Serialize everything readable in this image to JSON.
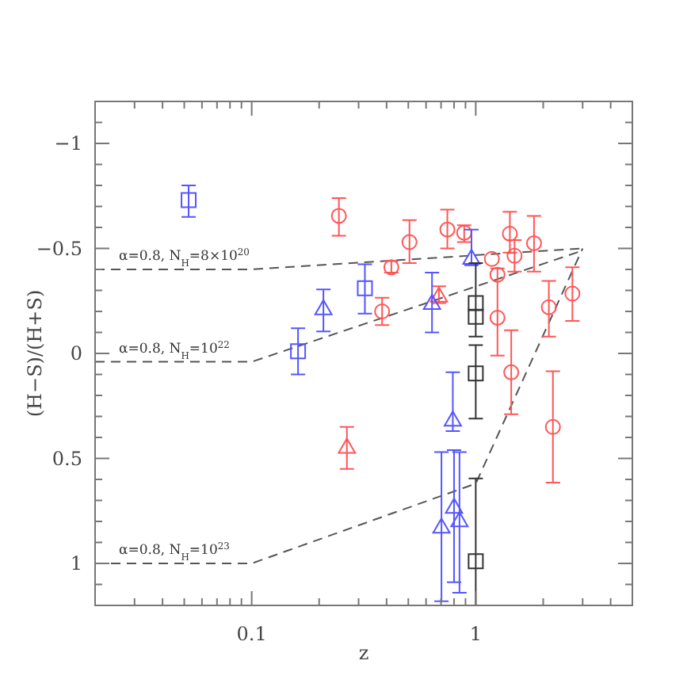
{
  "chart_data": {
    "type": "scatter",
    "xlabel": "z",
    "ylabel": "(H−S)/(H+S)",
    "log": "x",
    "xlim": [
      0.02,
      5
    ],
    "ylim": [
      1.2,
      -1.2
    ],
    "xticks": [
      {
        "value": 0.03,
        "label": null
      },
      {
        "value": 0.04,
        "label": null
      },
      {
        "value": 0.05,
        "label": null
      },
      {
        "value": 0.06,
        "label": null
      },
      {
        "value": 0.07,
        "label": null
      },
      {
        "value": 0.08,
        "label": null
      },
      {
        "value": 0.09,
        "label": null
      },
      0.1,
      {
        "value": 0.2,
        "label": null
      },
      {
        "value": 0.3,
        "label": null
      },
      {
        "value": 0.4,
        "label": null
      },
      {
        "value": 0.5,
        "label": null
      },
      {
        "value": 0.6,
        "label": null
      },
      {
        "value": 0.7,
        "label": null
      },
      {
        "value": 0.8,
        "label": null
      },
      {
        "value": 0.9,
        "label": null
      },
      1,
      {
        "value": 2,
        "label": null
      },
      {
        "value": 3,
        "label": null
      },
      {
        "value": 4,
        "label": null
      }
    ],
    "yticks": [
      {
        "value": -1.1,
        "label": null
      },
      {
        "value": -1,
        "label": "−1"
      },
      {
        "value": -0.9,
        "label": null
      },
      {
        "value": -0.8,
        "label": null
      },
      {
        "value": -0.7,
        "label": null
      },
      {
        "value": -0.6,
        "label": null
      },
      {
        "value": -0.5,
        "label": "−0.5"
      },
      {
        "value": -0.4,
        "label": null
      },
      {
        "value": -0.3,
        "label": null
      },
      {
        "value": -0.2,
        "label": null
      },
      {
        "value": -0.1,
        "label": null
      },
      0,
      {
        "value": 0.1,
        "label": null
      },
      {
        "value": 0.2,
        "label": null
      },
      {
        "value": 0.3,
        "label": null
      },
      {
        "value": 0.4,
        "label": null
      },
      0.5,
      {
        "value": 0.6,
        "label": null
      },
      {
        "value": 0.7,
        "label": null
      },
      {
        "value": 0.8,
        "label": null
      },
      {
        "value": 0.9,
        "label": null
      },
      1,
      {
        "value": 1.1,
        "label": null
      }
    ],
    "series": [
      {
        "type": "line",
        "name": "α=0.8, N$_{H}$=8×10$^{20}$",
        "color": "#555555",
        "line_style": "dashed",
        "x": [
          0.02,
          0.1,
          3
        ],
        "values": [
          -0.4,
          -0.4,
          -0.5
        ]
      },
      {
        "type": "line",
        "name": "α=0.8, N$_{H}$=10$^{22}$",
        "color": "#555555",
        "line_style": "dashed",
        "x": [
          0.02,
          0.1,
          3
        ],
        "values": [
          0.04,
          0.04,
          -0.49
        ]
      },
      {
        "type": "line",
        "name": "α=0.8, N$_{H}$=10$^{23}$",
        "color": "#555555",
        "line_style": "dashed",
        "x": [
          0.02,
          0.1,
          1,
          3
        ],
        "values": [
          1.0,
          1.0,
          0.62,
          -0.5
        ]
      },
      {
        "marker": "circle",
        "color": "#ff5555",
        "x": [
          0.245,
          0.506,
          0.747,
          0.888,
          0.42,
          0.382,
          1.42,
          1.82,
          1.49,
          1.18,
          1.25,
          1.25,
          1.44,
          2.12,
          2.7,
          2.21
        ],
        "values": [
          -0.655,
          -0.53,
          -0.59,
          -0.575,
          -0.41,
          -0.2,
          -0.57,
          -0.525,
          -0.465,
          -0.45,
          -0.375,
          -0.17,
          0.09,
          -0.22,
          -0.285,
          0.35
        ],
        "errors": [
          [
            -0.74,
            -0.56
          ],
          [
            -0.635,
            -0.43
          ],
          [
            -0.685,
            -0.5
          ],
          [
            -0.61,
            -0.53
          ],
          [
            -0.44,
            -0.385
          ],
          [
            -0.265,
            -0.135
          ],
          [
            -0.675,
            -0.48
          ],
          [
            -0.655,
            -0.39
          ],
          [
            -0.54,
            -0.39
          ],
          null,
          null,
          [
            -0.405,
            0.01
          ],
          [
            -0.11,
            0.29
          ],
          [
            -0.345,
            -0.08
          ],
          [
            -0.41,
            -0.155
          ],
          [
            0.085,
            0.615
          ]
        ]
      },
      {
        "marker": "triangle",
        "color": "#ff5555",
        "x": [
          0.266,
          0.685
        ],
        "values": [
          0.44,
          -0.28
        ],
        "errors": [
          [
            0.35,
            0.55
          ],
          [
            -0.32,
            -0.24
          ]
        ]
      },
      {
        "marker": "triangle",
        "color": "#5555ff",
        "x": [
          0.209,
          0.638,
          0.957,
          0.79,
          0.8,
          0.846,
          0.703
        ],
        "values": [
          -0.22,
          -0.245,
          -0.46,
          0.31,
          0.725,
          0.79,
          0.82
        ],
        "errors": [
          [
            -0.305,
            -0.105
          ],
          [
            -0.385,
            -0.1
          ],
          [
            -0.59,
            -0.42
          ],
          [
            0.09,
            0.37
          ],
          [
            0.46,
            1.09
          ],
          [
            0.47,
            1.14
          ],
          [
            0.47,
            1.18
          ]
        ]
      },
      {
        "marker": "square",
        "color": "#5555ff",
        "x": [
          0.0523,
          0.161,
          0.32
        ],
        "values": [
          -0.73,
          -0.01,
          -0.31
        ],
        "errors": [
          [
            -0.8,
            -0.65
          ],
          [
            -0.12,
            0.1
          ],
          [
            -0.425,
            -0.19
          ]
        ]
      },
      {
        "marker": "square",
        "color": "#333333",
        "x": [
          1,
          1,
          1,
          1
        ],
        "values": [
          -0.24,
          -0.175,
          0.095,
          0.99
        ],
        "errors": [
          [
            -0.43,
            -0.08
          ],
          null,
          [
            -0.04,
            0.31
          ],
          [
            0.595,
            1.2
          ]
        ]
      }
    ]
  }
}
